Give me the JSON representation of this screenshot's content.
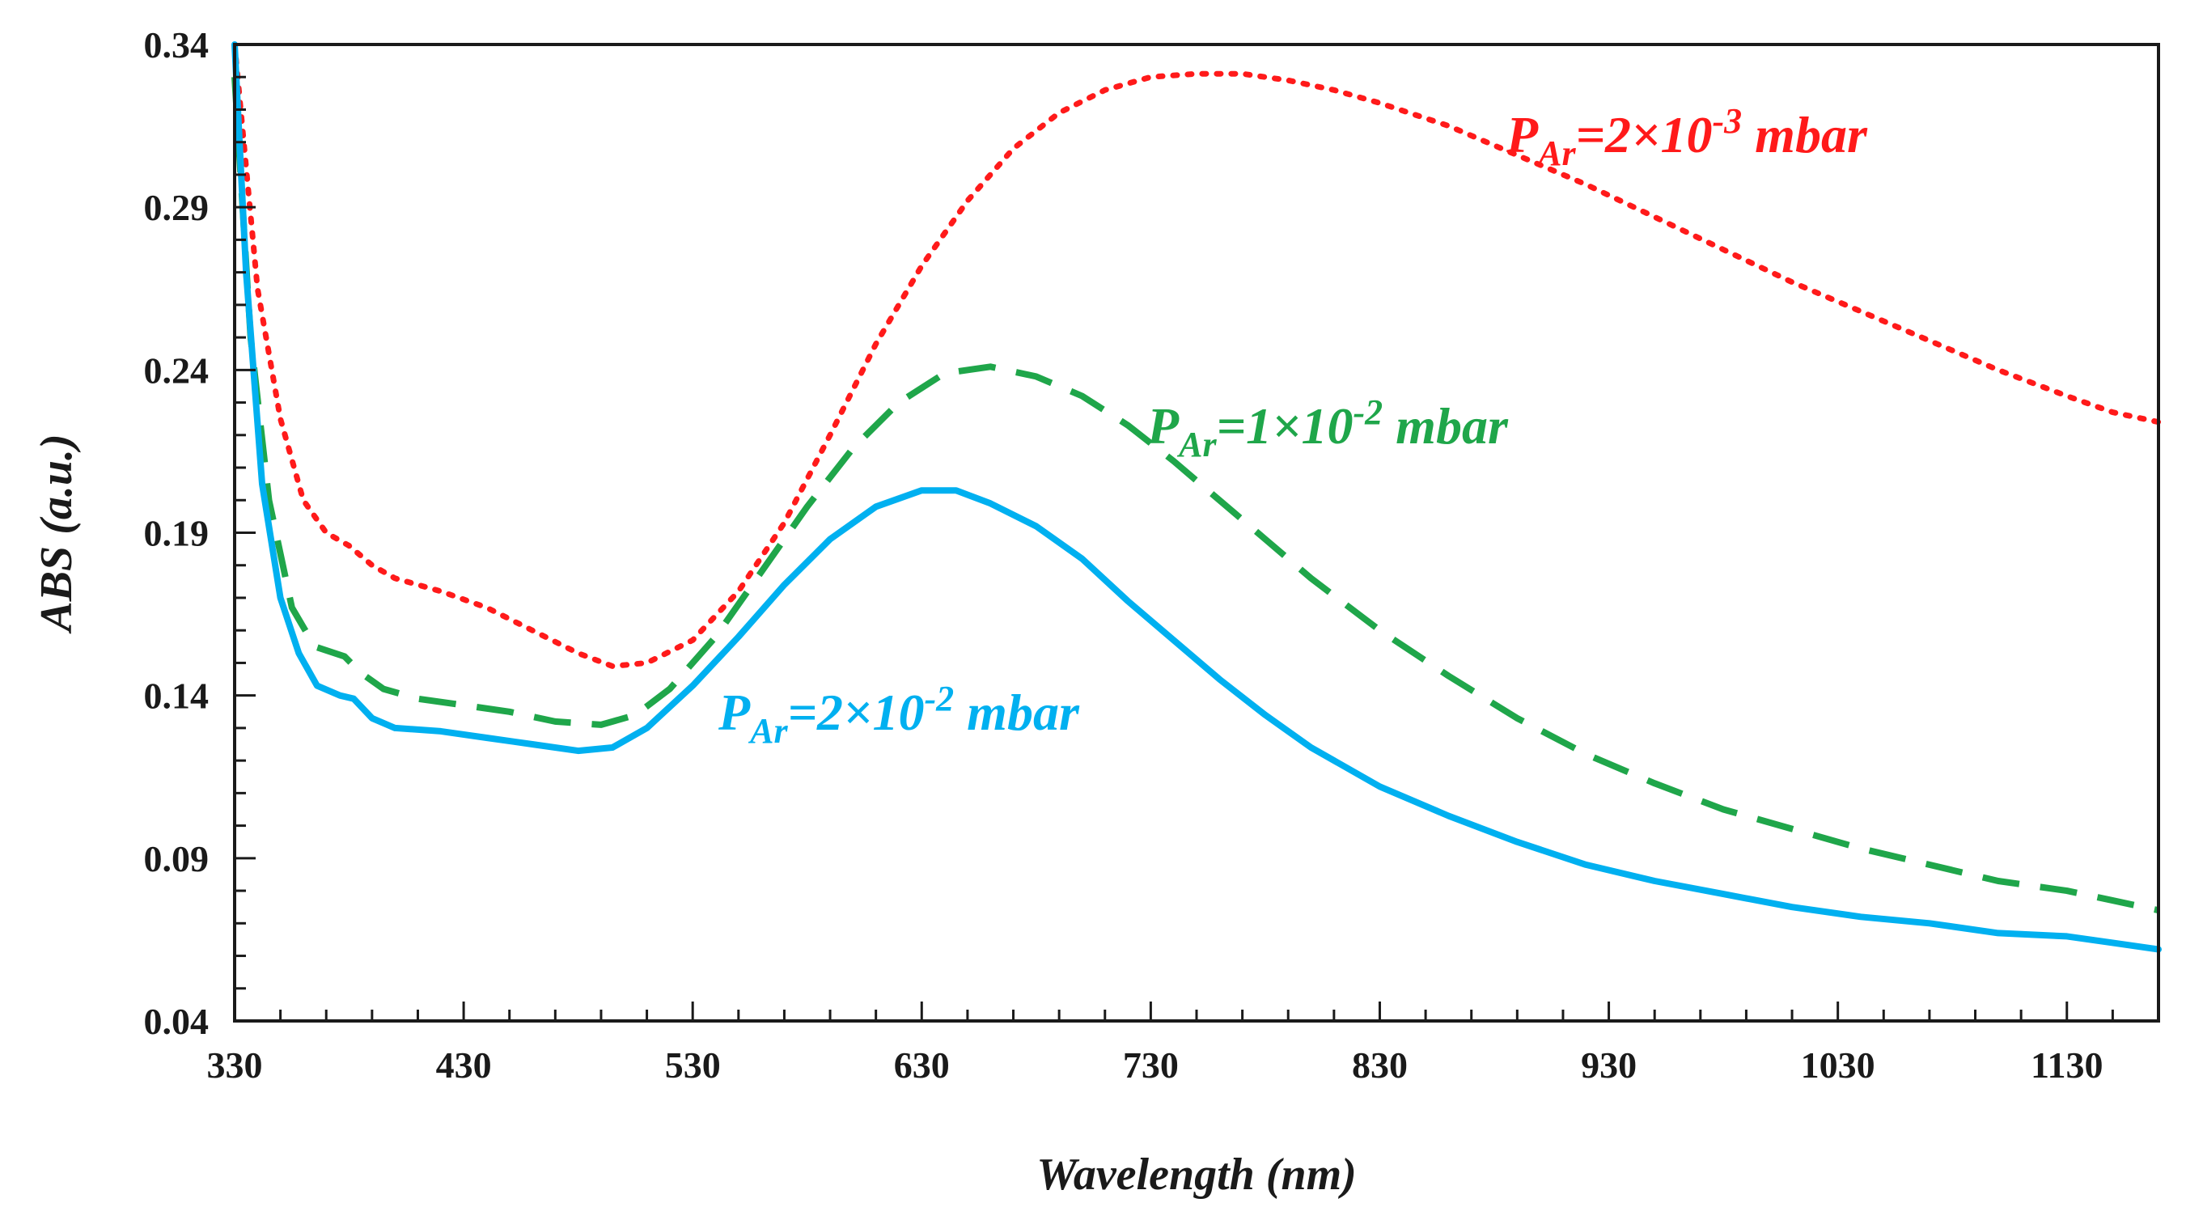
{
  "chart_data": {
    "type": "line",
    "title": "",
    "xlabel": "Wavelength (nm)",
    "ylabel": "ABS (a.u.)",
    "xlim": [
      330,
      1170
    ],
    "ylim": [
      0.04,
      0.34
    ],
    "x_ticks": [
      "330",
      "430",
      "530",
      "630",
      "730",
      "830",
      "930",
      "1030",
      "1130"
    ],
    "y_ticks": [
      "0.04",
      "0.09",
      "0.14",
      "0.19",
      "0.24",
      "0.29",
      "0.34"
    ],
    "grid": false,
    "series": [
      {
        "name": "PAr=2×10-3 mbar",
        "label_parts": {
          "p": "P",
          "sub": "Ar",
          "mid": "=2×10",
          "sup": "-3",
          "end": " mbar"
        },
        "color": "#ff1a1a",
        "style": "dotted",
        "points": [
          [
            330,
            0.34
          ],
          [
            340,
            0.265
          ],
          [
            350,
            0.225
          ],
          [
            360,
            0.2
          ],
          [
            370,
            0.19
          ],
          [
            380,
            0.186
          ],
          [
            390,
            0.18
          ],
          [
            400,
            0.176
          ],
          [
            420,
            0.172
          ],
          [
            440,
            0.167
          ],
          [
            460,
            0.16
          ],
          [
            480,
            0.153
          ],
          [
            495,
            0.149
          ],
          [
            510,
            0.15
          ],
          [
            530,
            0.157
          ],
          [
            550,
            0.172
          ],
          [
            570,
            0.193
          ],
          [
            590,
            0.22
          ],
          [
            610,
            0.248
          ],
          [
            630,
            0.272
          ],
          [
            650,
            0.292
          ],
          [
            670,
            0.308
          ],
          [
            690,
            0.319
          ],
          [
            710,
            0.326
          ],
          [
            730,
            0.33
          ],
          [
            750,
            0.331
          ],
          [
            770,
            0.331
          ],
          [
            790,
            0.329
          ],
          [
            810,
            0.326
          ],
          [
            830,
            0.322
          ],
          [
            860,
            0.315
          ],
          [
            890,
            0.306
          ],
          [
            920,
            0.297
          ],
          [
            950,
            0.287
          ],
          [
            980,
            0.277
          ],
          [
            1010,
            0.267
          ],
          [
            1040,
            0.258
          ],
          [
            1070,
            0.249
          ],
          [
            1100,
            0.24
          ],
          [
            1130,
            0.232
          ],
          [
            1150,
            0.227
          ],
          [
            1170,
            0.224
          ]
        ]
      },
      {
        "name": "PAr=1×10-2 mbar",
        "label_parts": {
          "p": "P",
          "sub": "Ar",
          "mid": "=1×10",
          "sup": "-2",
          "end": " mbar"
        },
        "color": "#1fa64a",
        "style": "dashed",
        "points": [
          [
            330,
            0.33
          ],
          [
            337,
            0.25
          ],
          [
            345,
            0.2
          ],
          [
            355,
            0.167
          ],
          [
            365,
            0.155
          ],
          [
            378,
            0.152
          ],
          [
            385,
            0.147
          ],
          [
            395,
            0.142
          ],
          [
            410,
            0.139
          ],
          [
            430,
            0.137
          ],
          [
            450,
            0.135
          ],
          [
            470,
            0.132
          ],
          [
            490,
            0.131
          ],
          [
            505,
            0.134
          ],
          [
            520,
            0.142
          ],
          [
            540,
            0.158
          ],
          [
            560,
            0.178
          ],
          [
            580,
            0.198
          ],
          [
            600,
            0.216
          ],
          [
            620,
            0.23
          ],
          [
            640,
            0.239
          ],
          [
            660,
            0.241
          ],
          [
            680,
            0.238
          ],
          [
            700,
            0.232
          ],
          [
            720,
            0.223
          ],
          [
            740,
            0.212
          ],
          [
            760,
            0.2
          ],
          [
            780,
            0.188
          ],
          [
            800,
            0.176
          ],
          [
            830,
            0.16
          ],
          [
            860,
            0.146
          ],
          [
            890,
            0.133
          ],
          [
            920,
            0.122
          ],
          [
            950,
            0.113
          ],
          [
            980,
            0.105
          ],
          [
            1010,
            0.099
          ],
          [
            1040,
            0.093
          ],
          [
            1070,
            0.088
          ],
          [
            1100,
            0.083
          ],
          [
            1130,
            0.08
          ],
          [
            1150,
            0.077
          ],
          [
            1170,
            0.074
          ]
        ]
      },
      {
        "name": "PAr=2×10-2 mbar",
        "label_parts": {
          "p": "P",
          "sub": "Ar",
          "mid": "=2×10",
          "sup": "-2",
          "end": " mbar"
        },
        "color": "#00b0f0",
        "style": "solid",
        "points": [
          [
            330,
            0.34
          ],
          [
            335,
            0.27
          ],
          [
            342,
            0.205
          ],
          [
            350,
            0.17
          ],
          [
            358,
            0.153
          ],
          [
            366,
            0.143
          ],
          [
            376,
            0.14
          ],
          [
            382,
            0.139
          ],
          [
            390,
            0.133
          ],
          [
            400,
            0.13
          ],
          [
            420,
            0.129
          ],
          [
            440,
            0.127
          ],
          [
            460,
            0.125
          ],
          [
            480,
            0.123
          ],
          [
            495,
            0.124
          ],
          [
            510,
            0.13
          ],
          [
            530,
            0.143
          ],
          [
            550,
            0.158
          ],
          [
            570,
            0.174
          ],
          [
            590,
            0.188
          ],
          [
            610,
            0.198
          ],
          [
            630,
            0.203
          ],
          [
            645,
            0.203
          ],
          [
            660,
            0.199
          ],
          [
            680,
            0.192
          ],
          [
            700,
            0.182
          ],
          [
            720,
            0.169
          ],
          [
            740,
            0.157
          ],
          [
            760,
            0.145
          ],
          [
            780,
            0.134
          ],
          [
            800,
            0.124
          ],
          [
            830,
            0.112
          ],
          [
            860,
            0.103
          ],
          [
            890,
            0.095
          ],
          [
            920,
            0.088
          ],
          [
            950,
            0.083
          ],
          [
            980,
            0.079
          ],
          [
            1010,
            0.075
          ],
          [
            1040,
            0.072
          ],
          [
            1070,
            0.07
          ],
          [
            1100,
            0.067
          ],
          [
            1130,
            0.066
          ],
          [
            1150,
            0.064
          ],
          [
            1170,
            0.062
          ]
        ]
      }
    ]
  }
}
